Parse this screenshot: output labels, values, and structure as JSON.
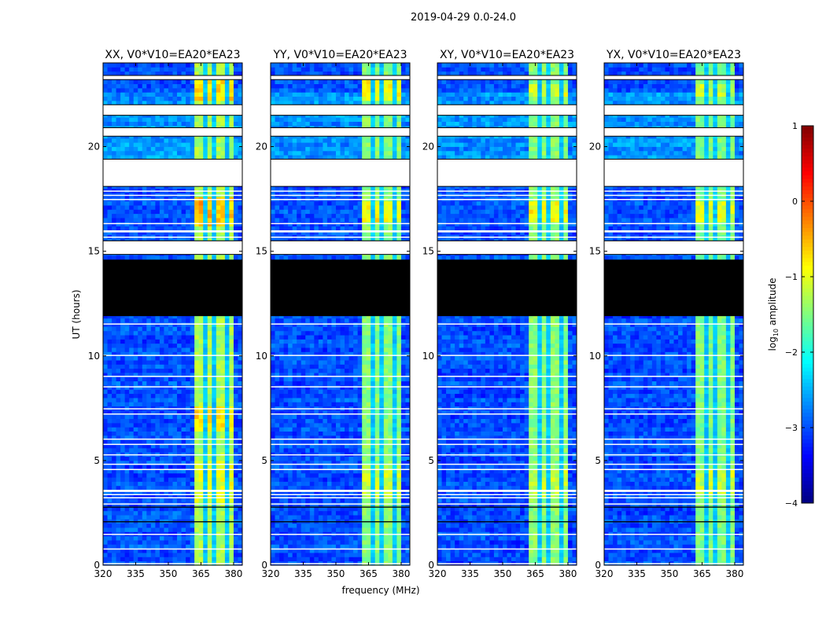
{
  "chart_data": {
    "type": "heatmap",
    "suptitle": "2019-04-29 0.0-24.0",
    "xlabel": "frequency (MHz)",
    "ylabel": "UT (hours)",
    "xlim": [
      320,
      384
    ],
    "ylim": [
      0,
      24
    ],
    "xticks": [
      "320",
      "335",
      "350",
      "365",
      "380"
    ],
    "yticks": [
      "0",
      "5",
      "10",
      "15",
      "20"
    ],
    "grid": false,
    "panels": [
      {
        "title": "XX, V0*V10=EA20*EA23",
        "band_level": -1.3,
        "boosts": [
          [
            16.0,
            17.5,
            0.8
          ],
          [
            22.0,
            23.0,
            0.6
          ],
          [
            6.4,
            7.6,
            0.55
          ],
          [
            3.0,
            5.0,
            0.3
          ]
        ]
      },
      {
        "title": "YY, V0*V10=EA20*EA23",
        "band_level": -1.45,
        "boosts": [
          [
            16.2,
            17.3,
            0.6
          ],
          [
            22.1,
            23.0,
            0.55
          ],
          [
            3.2,
            4.8,
            0.3
          ]
        ]
      },
      {
        "title": "XY, V0*V10=EA20*EA23",
        "band_level": -1.45,
        "boosts": [
          [
            16.3,
            17.3,
            0.55
          ],
          [
            22.3,
            22.9,
            0.4
          ],
          [
            3.2,
            4.6,
            0.3
          ]
        ]
      },
      {
        "title": "YX, V0*V10=EA20*EA23",
        "band_level": -1.5,
        "boosts": [
          [
            16.3,
            17.3,
            0.5
          ],
          [
            22.3,
            22.9,
            0.35
          ],
          [
            3.4,
            4.6,
            0.4
          ]
        ]
      }
    ],
    "background_level": -3.0,
    "bright_band_mhz": [
      362,
      380
    ],
    "dark_channels_mhz": [
      366.5,
      371.5,
      376.5
    ],
    "flagged_white_hours": [
      [
        23.2,
        23.4
      ],
      [
        22.0,
        21.5
      ],
      [
        20.9,
        20.5
      ],
      [
        19.4,
        18.1
      ],
      [
        17.9,
        17.85
      ],
      [
        17.7,
        17.65
      ],
      [
        17.5,
        17.45
      ],
      [
        16.35,
        16.3
      ],
      [
        16.0,
        15.9
      ],
      [
        15.7,
        15.65
      ],
      [
        15.5,
        14.85
      ],
      [
        11.55,
        11.5
      ],
      [
        10.05,
        10.0
      ],
      [
        9.05,
        9.0
      ],
      [
        8.55,
        8.5
      ],
      [
        7.5,
        7.45
      ],
      [
        7.25,
        7.2
      ],
      [
        6.05,
        6.0
      ],
      [
        5.8,
        5.75
      ],
      [
        5.3,
        5.25
      ],
      [
        4.85,
        4.8
      ],
      [
        4.6,
        4.55
      ],
      [
        3.6,
        3.5
      ],
      [
        3.4,
        3.35
      ],
      [
        3.25,
        3.2
      ],
      [
        2.95,
        2.9
      ],
      [
        1.5,
        1.45
      ],
      [
        0.8,
        0.75
      ],
      [
        0.1,
        0.05
      ]
    ],
    "flagged_black_hours": [
      [
        14.6,
        11.9
      ],
      [
        2.1,
        2.05
      ],
      [
        2.8,
        2.75
      ]
    ],
    "colorbar": {
      "label_prefix": "log",
      "label_sub": "10",
      "label_suffix": " amplitude",
      "range": [
        -4,
        1
      ],
      "ticks": [
        "−4",
        "−3",
        "−2",
        "−1",
        "0",
        "1"
      ],
      "colormap": "jet"
    }
  }
}
